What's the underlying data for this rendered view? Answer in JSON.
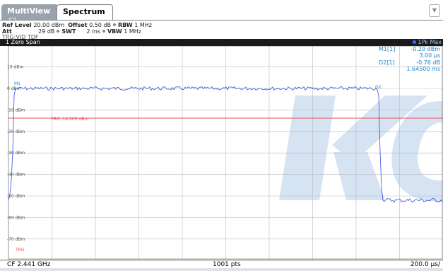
{
  "tabs": [
    {
      "label": "MultiView"
    },
    {
      "label": "Spectrum"
    }
  ],
  "settings": {
    "ref_level_label": "Ref Level",
    "ref_level_value": "20.00 dBm",
    "offset_label": "Offset",
    "offset_value": "0.50 dB",
    "rbw_label": "RBW",
    "rbw_value": "1 MHz",
    "att_label": "Att",
    "att_value": "29 dB",
    "swt_label": "SWT",
    "swt_value": "2 ms",
    "vbw_label": "VBW",
    "vbw_value": "1 MHz",
    "trigger_text": "TRG:VID TDF"
  },
  "window": {
    "title": "1 Zero Span",
    "trace_label": "1Pk Max"
  },
  "markers": {
    "m1_label": "M1[1]",
    "m1_level": "-0.29 dBm",
    "m1_time": "3.00 µs",
    "d2_label": "D2[1]",
    "d2_level": "-0.76 dB",
    "d2_time": "1.64500 ms",
    "m1_tag": "M1",
    "d2_tag": "D2"
  },
  "axis": {
    "y_labels": [
      "10 dBm",
      "0 dBm",
      "-10 dBm",
      "-20 dBm",
      "-30 dBm",
      "-40 dBm",
      "-50 dBm",
      "-60 dBm",
      "-70 dBm"
    ],
    "trigger_line_label": "TRG -14.000 dBm",
    "trigger_tag": "TRG"
  },
  "footer": {
    "center_freq": "CF 2.441 GHz",
    "points": "1001 pts",
    "time_div": "200.0 µs/"
  },
  "colors": {
    "trace": "#2f4fe0",
    "trigger_line": "#e05050",
    "marker_text": "#1f86c5",
    "watermark": "#cfdff2"
  }
}
